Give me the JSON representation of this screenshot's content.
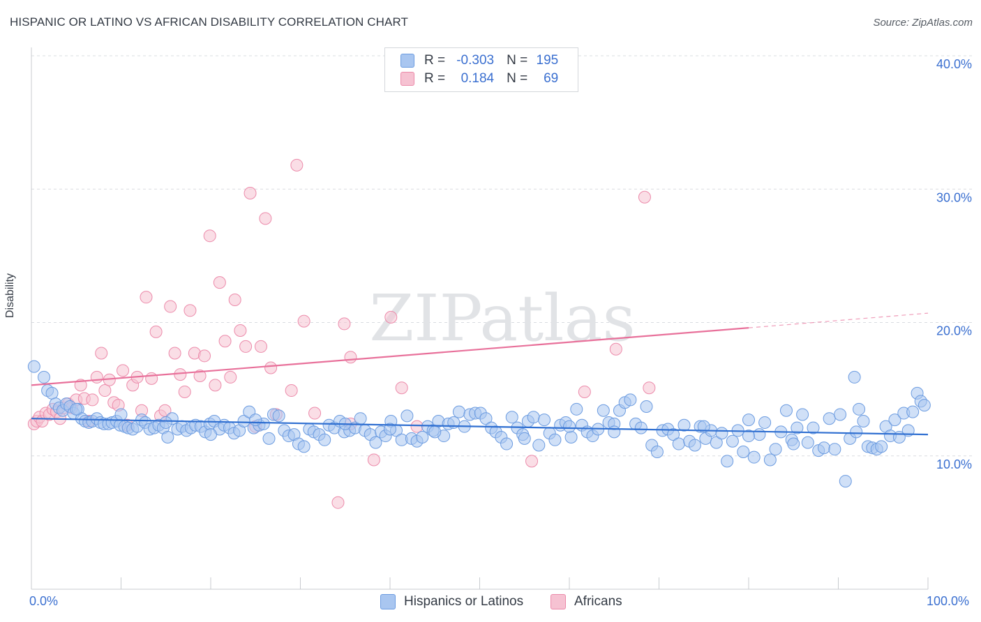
{
  "title": "HISPANIC OR LATINO VS AFRICAN DISABILITY CORRELATION CHART",
  "source": "Source: ZipAtlas.com",
  "watermark": "ZIPatlas",
  "legend": {
    "r_label": "R =",
    "n_label": "N =",
    "rows": [
      {
        "r": "-0.303",
        "n": "195",
        "color": "#a9c6f0"
      },
      {
        "r": "0.184",
        "n": "69",
        "color": "#f6b8c9"
      }
    ]
  },
  "bottom_legend": [
    {
      "label": "Hispanics or Latinos",
      "color": "#a9c6f0"
    },
    {
      "label": "Africans",
      "color": "#f6b8c9"
    }
  ],
  "chart_data": {
    "type": "scatter",
    "title": "HISPANIC OR LATINO VS AFRICAN DISABILITY CORRELATION CHART",
    "xlabel": "",
    "ylabel": "Disability",
    "xlim": [
      0,
      100
    ],
    "ylim": [
      0,
      40
    ],
    "x_tick_labels": [
      "0.0%",
      "100.0%"
    ],
    "y_tick_labels": [
      "10.0%",
      "20.0%",
      "30.0%",
      "40.0%"
    ],
    "y_ticks": [
      10,
      20,
      30,
      40
    ],
    "colors": {
      "hispanic_fill": "#a9c6f0",
      "hispanic_edge": "#6b9be0",
      "hispanic_line": "#2f6fd1",
      "african_fill": "#f6c2d2",
      "african_edge": "#ec8aaa",
      "african_line": "#e8709a"
    },
    "series": [
      {
        "name": "Hispanics or Latinos",
        "trend": {
          "x0": 0,
          "y0": 12.8,
          "x1": 100,
          "y1": 11.6
        },
        "points": [
          [
            0.3,
            16.7
          ],
          [
            1.4,
            15.9
          ],
          [
            1.8,
            14.9
          ],
          [
            2.3,
            14.7
          ],
          [
            2.7,
            13.9
          ],
          [
            3.1,
            13.6
          ],
          [
            3.5,
            13.4
          ],
          [
            3.9,
            13.9
          ],
          [
            4.3,
            13.7
          ],
          [
            4.7,
            13.2
          ],
          [
            5.2,
            13.5
          ],
          [
            5.6,
            12.8
          ],
          [
            6.0,
            12.6
          ],
          [
            6.4,
            12.5
          ],
          [
            6.8,
            12.6
          ],
          [
            7.3,
            12.8
          ],
          [
            7.7,
            12.5
          ],
          [
            8.1,
            12.4
          ],
          [
            8.6,
            12.4
          ],
          [
            9.0,
            12.5
          ],
          [
            9.5,
            12.6
          ],
          [
            9.9,
            12.3
          ],
          [
            10.4,
            12.2
          ],
          [
            10.8,
            12.1
          ],
          [
            11.3,
            12.0
          ],
          [
            11.8,
            12.2
          ],
          [
            12.3,
            12.7
          ],
          [
            12.7,
            12.5
          ],
          [
            13.2,
            12.0
          ],
          [
            13.7,
            12.1
          ],
          [
            14.2,
            12.3
          ],
          [
            14.7,
            12.1
          ],
          [
            15.2,
            11.4
          ],
          [
            15.7,
            12.8
          ],
          [
            16.3,
            12.0
          ],
          [
            16.8,
            12.2
          ],
          [
            17.3,
            11.9
          ],
          [
            17.8,
            12.1
          ],
          [
            18.3,
            12.3
          ],
          [
            18.9,
            12.2
          ],
          [
            19.4,
            11.8
          ],
          [
            19.9,
            12.4
          ],
          [
            20.4,
            12.6
          ],
          [
            21.0,
            12.0
          ],
          [
            21.5,
            12.3
          ],
          [
            22.1,
            12.1
          ],
          [
            22.6,
            11.7
          ],
          [
            23.2,
            11.9
          ],
          [
            23.7,
            12.6
          ],
          [
            24.3,
            13.3
          ],
          [
            24.8,
            12.1
          ],
          [
            25.4,
            12.3
          ],
          [
            25.9,
            12.4
          ],
          [
            26.5,
            11.3
          ],
          [
            27.0,
            13.1
          ],
          [
            27.6,
            13.0
          ],
          [
            28.2,
            11.9
          ],
          [
            28.7,
            11.5
          ],
          [
            29.3,
            11.6
          ],
          [
            29.8,
            10.9
          ],
          [
            30.4,
            10.7
          ],
          [
            31.0,
            12.0
          ],
          [
            31.5,
            11.8
          ],
          [
            32.1,
            11.6
          ],
          [
            32.7,
            11.2
          ],
          [
            33.2,
            12.3
          ],
          [
            33.8,
            12.1
          ],
          [
            34.4,
            12.6
          ],
          [
            34.9,
            11.8
          ],
          [
            35.5,
            11.9
          ],
          [
            36.1,
            12.1
          ],
          [
            36.7,
            12.8
          ],
          [
            37.2,
            11.9
          ],
          [
            37.8,
            11.6
          ],
          [
            38.4,
            11.0
          ],
          [
            39.0,
            11.8
          ],
          [
            39.5,
            11.5
          ],
          [
            40.1,
            12.6
          ],
          [
            40.7,
            11.9
          ],
          [
            41.3,
            11.2
          ],
          [
            41.9,
            13.0
          ],
          [
            42.4,
            11.3
          ],
          [
            43.0,
            11.1
          ],
          [
            43.6,
            11.4
          ],
          [
            44.2,
            12.2
          ],
          [
            44.8,
            11.9
          ],
          [
            45.4,
            12.6
          ],
          [
            46.0,
            11.5
          ],
          [
            46.5,
            12.4
          ],
          [
            47.1,
            12.5
          ],
          [
            47.7,
            13.3
          ],
          [
            48.3,
            12.2
          ],
          [
            48.9,
            13.1
          ],
          [
            49.5,
            13.2
          ],
          [
            50.1,
            13.2
          ],
          [
            50.7,
            12.8
          ],
          [
            51.3,
            12.1
          ],
          [
            51.8,
            11.8
          ],
          [
            52.4,
            11.4
          ],
          [
            53.0,
            10.9
          ],
          [
            53.6,
            12.9
          ],
          [
            54.2,
            12.1
          ],
          [
            54.8,
            11.6
          ],
          [
            55.4,
            12.6
          ],
          [
            56.0,
            12.9
          ],
          [
            56.6,
            10.8
          ],
          [
            57.2,
            12.7
          ],
          [
            57.8,
            11.7
          ],
          [
            58.4,
            11.2
          ],
          [
            59.0,
            12.3
          ],
          [
            59.6,
            12.5
          ],
          [
            60.2,
            11.4
          ],
          [
            60.8,
            13.5
          ],
          [
            61.4,
            12.3
          ],
          [
            62.0,
            11.8
          ],
          [
            62.6,
            11.5
          ],
          [
            63.2,
            12.0
          ],
          [
            63.8,
            13.4
          ],
          [
            64.4,
            12.5
          ],
          [
            65.0,
            12.4
          ],
          [
            65.6,
            13.4
          ],
          [
            66.2,
            14.0
          ],
          [
            66.8,
            14.2
          ],
          [
            67.4,
            12.4
          ],
          [
            68.0,
            12.1
          ],
          [
            68.6,
            13.7
          ],
          [
            69.2,
            10.8
          ],
          [
            69.8,
            10.3
          ],
          [
            70.4,
            11.9
          ],
          [
            71.0,
            12.0
          ],
          [
            71.6,
            11.6
          ],
          [
            72.2,
            10.9
          ],
          [
            72.8,
            12.3
          ],
          [
            73.4,
            11.1
          ],
          [
            74.0,
            10.8
          ],
          [
            74.6,
            12.2
          ],
          [
            75.2,
            11.3
          ],
          [
            75.8,
            11.9
          ],
          [
            76.4,
            11.0
          ],
          [
            77.0,
            11.7
          ],
          [
            77.6,
            9.6
          ],
          [
            78.2,
            11.1
          ],
          [
            78.8,
            11.9
          ],
          [
            79.4,
            10.3
          ],
          [
            80.0,
            12.7
          ],
          [
            80.6,
            9.9
          ],
          [
            81.2,
            11.6
          ],
          [
            81.8,
            12.5
          ],
          [
            82.4,
            9.7
          ],
          [
            83.0,
            10.5
          ],
          [
            83.6,
            11.8
          ],
          [
            84.2,
            13.4
          ],
          [
            84.8,
            11.2
          ],
          [
            85.4,
            12.1
          ],
          [
            86.0,
            13.1
          ],
          [
            86.6,
            11.0
          ],
          [
            87.2,
            12.1
          ],
          [
            87.8,
            10.4
          ],
          [
            88.4,
            10.6
          ],
          [
            89.0,
            12.8
          ],
          [
            89.6,
            10.5
          ],
          [
            90.2,
            13.1
          ],
          [
            90.8,
            8.1
          ],
          [
            91.3,
            11.3
          ],
          [
            91.8,
            15.9
          ],
          [
            92.3,
            13.5
          ],
          [
            92.8,
            12.6
          ],
          [
            93.3,
            10.7
          ],
          [
            93.8,
            10.6
          ],
          [
            94.3,
            10.5
          ],
          [
            94.8,
            10.7
          ],
          [
            95.3,
            12.2
          ],
          [
            95.8,
            11.5
          ],
          [
            96.3,
            12.7
          ],
          [
            96.8,
            11.4
          ],
          [
            97.3,
            13.2
          ],
          [
            97.8,
            11.9
          ],
          [
            98.3,
            13.3
          ],
          [
            98.8,
            14.7
          ],
          [
            99.2,
            14.1
          ],
          [
            99.6,
            13.8
          ],
          [
            55.0,
            11.3
          ],
          [
            45.0,
            11.8
          ],
          [
            35.0,
            12.4
          ],
          [
            25.0,
            12.7
          ],
          [
            15.0,
            12.5
          ],
          [
            5.0,
            13.5
          ],
          [
            65.0,
            11.8
          ],
          [
            75.0,
            12.2
          ],
          [
            85.0,
            10.9
          ],
          [
            92.0,
            11.8
          ],
          [
            20.0,
            11.6
          ],
          [
            40.0,
            12.0
          ],
          [
            60.0,
            12.2
          ],
          [
            80.0,
            11.5
          ],
          [
            10.0,
            13.1
          ]
        ]
      },
      {
        "name": "Africans",
        "trend": {
          "x0": 0,
          "y0": 15.3,
          "x1": 80,
          "y1": 19.6,
          "dashed_to_x": 100,
          "dashed_to_y": 20.7
        },
        "points": [
          [
            0.3,
            12.4
          ],
          [
            0.6,
            12.6
          ],
          [
            0.9,
            12.9
          ],
          [
            1.2,
            12.6
          ],
          [
            1.6,
            13.2
          ],
          [
            2.0,
            13.1
          ],
          [
            2.4,
            13.5
          ],
          [
            2.8,
            13.3
          ],
          [
            3.2,
            12.8
          ],
          [
            3.6,
            13.6
          ],
          [
            4.1,
            13.9
          ],
          [
            4.5,
            13.6
          ],
          [
            5.0,
            14.2
          ],
          [
            5.5,
            15.3
          ],
          [
            5.9,
            14.3
          ],
          [
            6.4,
            12.6
          ],
          [
            6.8,
            14.2
          ],
          [
            7.3,
            15.9
          ],
          [
            7.8,
            17.7
          ],
          [
            8.2,
            14.9
          ],
          [
            8.7,
            15.7
          ],
          [
            9.2,
            14.0
          ],
          [
            9.7,
            13.8
          ],
          [
            10.2,
            16.4
          ],
          [
            10.7,
            12.3
          ],
          [
            11.3,
            15.3
          ],
          [
            11.8,
            15.9
          ],
          [
            12.3,
            13.4
          ],
          [
            12.8,
            21.9
          ],
          [
            13.4,
            15.8
          ],
          [
            13.9,
            19.3
          ],
          [
            14.4,
            13.0
          ],
          [
            14.9,
            13.4
          ],
          [
            15.5,
            21.2
          ],
          [
            16.0,
            17.7
          ],
          [
            16.6,
            16.1
          ],
          [
            17.1,
            14.8
          ],
          [
            17.7,
            20.9
          ],
          [
            18.2,
            17.7
          ],
          [
            18.8,
            16.0
          ],
          [
            19.3,
            17.5
          ],
          [
            19.9,
            26.5
          ],
          [
            20.5,
            15.3
          ],
          [
            21.0,
            23.0
          ],
          [
            21.6,
            18.6
          ],
          [
            22.2,
            15.9
          ],
          [
            22.7,
            21.7
          ],
          [
            23.3,
            19.4
          ],
          [
            23.9,
            18.2
          ],
          [
            24.4,
            29.7
          ],
          [
            25.0,
            12.2
          ],
          [
            25.6,
            18.2
          ],
          [
            26.1,
            27.8
          ],
          [
            26.7,
            16.6
          ],
          [
            27.3,
            13.1
          ],
          [
            29.0,
            14.9
          ],
          [
            29.6,
            31.8
          ],
          [
            30.4,
            20.1
          ],
          [
            31.6,
            13.2
          ],
          [
            34.2,
            6.5
          ],
          [
            34.9,
            19.9
          ],
          [
            35.6,
            17.4
          ],
          [
            35.6,
            12.4
          ],
          [
            38.2,
            9.7
          ],
          [
            40.1,
            20.4
          ],
          [
            41.3,
            15.1
          ],
          [
            43.0,
            12.2
          ],
          [
            55.8,
            9.6
          ],
          [
            61.7,
            14.8
          ],
          [
            65.2,
            18.0
          ],
          [
            68.4,
            29.4
          ],
          [
            68.9,
            15.1
          ]
        ]
      }
    ]
  }
}
